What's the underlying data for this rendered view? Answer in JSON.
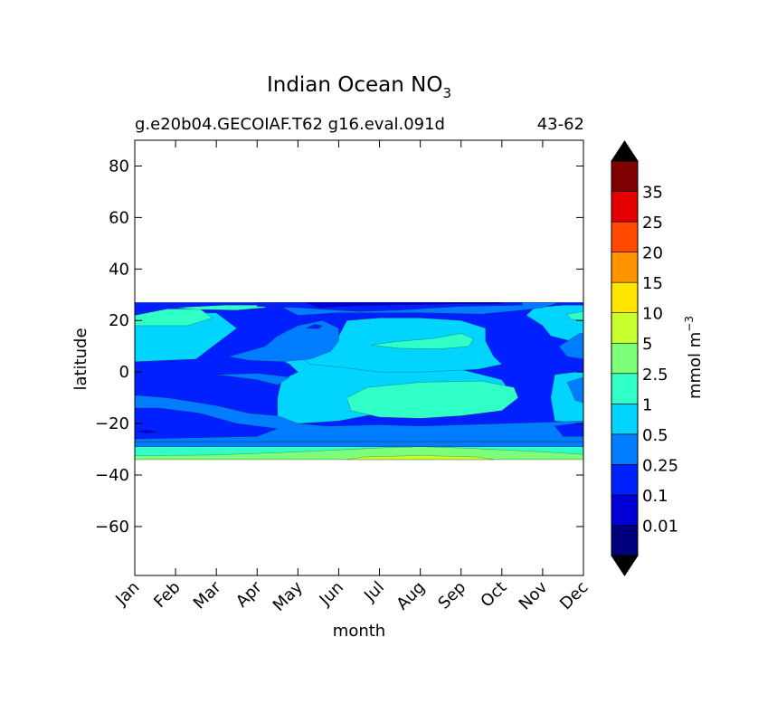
{
  "chart_data": {
    "type": "contour",
    "title_main": "Indian Ocean NO",
    "title_sub": "3",
    "subtitle_left": "g.e20b04.GECOIAF.T62 g16.eval.091d",
    "subtitle_right": "43-62",
    "xlabel": "month",
    "ylabel": "latitude",
    "x_categories": [
      "Jan",
      "Feb",
      "Mar",
      "Apr",
      "May",
      "Jun",
      "Jul",
      "Aug",
      "Sep",
      "Oct",
      "Nov",
      "Dec"
    ],
    "y_ticks": [
      "80",
      "60",
      "40",
      "20",
      "0",
      "−20",
      "−40",
      "−60"
    ],
    "y_tick_values": [
      80,
      60,
      40,
      20,
      0,
      -20,
      -40,
      -60
    ],
    "ylim": [
      -79,
      90
    ],
    "data_extent_lat": [
      -34,
      27
    ],
    "colorbar": {
      "label": "mmol m",
      "label_exp": "−3",
      "ticks": [
        "0.01",
        "0.1",
        "0.25",
        "0.5",
        "1",
        "2.5",
        "5",
        "10",
        "15",
        "20",
        "25",
        "35"
      ],
      "colors": [
        "#00007f",
        "#0000d6",
        "#0020ff",
        "#007cff",
        "#00d4ff",
        "#30ffc7",
        "#7dff7a",
        "#c8ff2f",
        "#ffe500",
        "#ff9400",
        "#ff4a00",
        "#e40000",
        "#7f0000"
      ],
      "extend": "both"
    },
    "regions": [
      {
        "level": 2,
        "points": [
          [
            1,
            27
          ],
          [
            12,
            27
          ],
          [
            12,
            -29
          ],
          [
            1,
            -29
          ]
        ]
      },
      {
        "level": 5,
        "points": [
          [
            1,
            -29
          ],
          [
            12,
            -29
          ],
          [
            12,
            -34
          ],
          [
            1,
            -34
          ]
        ]
      },
      {
        "level": 6,
        "points": [
          [
            1,
            -32.5
          ],
          [
            3,
            -32.2
          ],
          [
            5,
            -31
          ],
          [
            7,
            -29.5
          ],
          [
            8,
            -29
          ],
          [
            9,
            -29.5
          ],
          [
            11,
            -31
          ],
          [
            12,
            -32
          ],
          [
            12,
            -34
          ],
          [
            1,
            -34
          ]
        ]
      },
      {
        "level": 7,
        "points": [
          [
            6.2,
            -34
          ],
          [
            6.6,
            -33
          ],
          [
            8,
            -32.4
          ],
          [
            9.4,
            -33
          ],
          [
            9.8,
            -34
          ]
        ]
      },
      {
        "level": 3,
        "points": [
          [
            1,
            -27
          ],
          [
            12,
            -27
          ],
          [
            12,
            -29
          ],
          [
            1,
            -29
          ]
        ]
      },
      {
        "level": 4,
        "points": [
          [
            1,
            -24
          ],
          [
            3,
            -24
          ],
          [
            5,
            -25.5
          ],
          [
            7,
            -25
          ],
          [
            9,
            -24.5
          ],
          [
            11,
            -25
          ],
          [
            12,
            -25.5
          ],
          [
            12,
            -27
          ],
          [
            1,
            -27
          ]
        ]
      },
      {
        "level": 4,
        "points": [
          [
            1,
            21
          ],
          [
            2.2,
            23
          ],
          [
            3,
            23
          ],
          [
            3.5,
            17
          ],
          [
            3,
            11
          ],
          [
            2.5,
            5
          ],
          [
            1,
            4
          ]
        ]
      },
      {
        "level": 4,
        "points": [
          [
            4.4,
            6
          ],
          [
            5,
            5.5
          ],
          [
            6,
            2
          ],
          [
            7,
            2
          ],
          [
            8,
            2
          ],
          [
            9,
            1
          ],
          [
            9.5,
            -1
          ],
          [
            10,
            -3
          ],
          [
            10.3,
            -10
          ],
          [
            10,
            -15
          ],
          [
            8.5,
            -15
          ],
          [
            7,
            -16
          ],
          [
            6,
            -19
          ],
          [
            5,
            -20
          ],
          [
            4.5,
            -18
          ],
          [
            4.5,
            -10
          ],
          [
            4.6,
            -3
          ],
          [
            5,
            0
          ],
          [
            4.8,
            3
          ]
        ]
      },
      {
        "level": 4,
        "points": [
          [
            6.2,
            20
          ],
          [
            7,
            21
          ],
          [
            8,
            21
          ],
          [
            9,
            20
          ],
          [
            9.6,
            17
          ],
          [
            9.6,
            12
          ],
          [
            9.8,
            6
          ],
          [
            10,
            3
          ],
          [
            9.4,
            1
          ],
          [
            8,
            0
          ],
          [
            7,
            0
          ],
          [
            6,
            2
          ],
          [
            5.3,
            3
          ],
          [
            5,
            6
          ],
          [
            5.5,
            10
          ],
          [
            6,
            14
          ]
        ]
      },
      {
        "level": 4,
        "points": [
          [
            10.8,
            25
          ],
          [
            11.5,
            26
          ],
          [
            12,
            26
          ],
          [
            12,
            13
          ],
          [
            11.7,
            12
          ],
          [
            11.2,
            14
          ],
          [
            11,
            18
          ],
          [
            10.6,
            22
          ]
        ]
      },
      {
        "level": 4,
        "points": [
          [
            11.3,
            -1
          ],
          [
            11.8,
            0
          ],
          [
            12,
            0
          ],
          [
            12,
            -20
          ],
          [
            11.3,
            -19
          ],
          [
            11.2,
            -10
          ]
        ]
      },
      {
        "level": 5,
        "points": [
          [
            1,
            22
          ],
          [
            1.8,
            24.5
          ],
          [
            2.6,
            24.5
          ],
          [
            2.9,
            21
          ],
          [
            2.3,
            18
          ],
          [
            1,
            18
          ]
        ]
      },
      {
        "level": 5,
        "points": [
          [
            2,
            25
          ],
          [
            3.2,
            26
          ],
          [
            4.2,
            26
          ],
          [
            4.2,
            25
          ],
          [
            3.5,
            24
          ],
          [
            2.5,
            24.3
          ]
        ]
      },
      {
        "level": 5,
        "points": [
          [
            6.8,
            10.5
          ],
          [
            7.4,
            11.8
          ],
          [
            8.3,
            13
          ],
          [
            9,
            15
          ],
          [
            9.3,
            13
          ],
          [
            9.2,
            10
          ],
          [
            8.5,
            9
          ],
          [
            7.5,
            9.2
          ]
        ]
      },
      {
        "level": 5,
        "points": [
          [
            6.2,
            -10
          ],
          [
            6.7,
            -6
          ],
          [
            8,
            -4
          ],
          [
            9.5,
            -3.5
          ],
          [
            10.3,
            -6
          ],
          [
            10.4,
            -10
          ],
          [
            10,
            -15
          ],
          [
            9,
            -17
          ],
          [
            8,
            -18
          ],
          [
            7,
            -17.5
          ],
          [
            6.3,
            -15
          ]
        ]
      },
      {
        "level": 5,
        "points": [
          [
            11.6,
            22.5
          ],
          [
            12,
            23.5
          ],
          [
            12,
            20
          ],
          [
            11.7,
            20.5
          ]
        ]
      },
      {
        "level": 3,
        "points": [
          [
            1,
            -9
          ],
          [
            1.8,
            -10
          ],
          [
            3,
            -13
          ],
          [
            3.8,
            -16
          ],
          [
            4.5,
            -17
          ],
          [
            5,
            -20
          ],
          [
            5.7,
            -21
          ],
          [
            7,
            -20.5
          ],
          [
            8,
            -21
          ],
          [
            9,
            -20.5
          ],
          [
            10,
            -20
          ],
          [
            11,
            -19.5
          ],
          [
            12,
            -19
          ],
          [
            12,
            -27
          ],
          [
            1,
            -27
          ]
        ]
      },
      {
        "level": 3,
        "points": [
          [
            3.3,
            6
          ],
          [
            4.2,
            10
          ],
          [
            4.5,
            14
          ],
          [
            5,
            18
          ],
          [
            5.6,
            20
          ],
          [
            6,
            17
          ],
          [
            6,
            12
          ],
          [
            5.8,
            8
          ],
          [
            5.3,
            5
          ],
          [
            4.6,
            4
          ],
          [
            3.8,
            4.5
          ]
        ]
      },
      {
        "level": 3,
        "points": [
          [
            5,
            22
          ],
          [
            6,
            23
          ],
          [
            8,
            23
          ],
          [
            9.5,
            22.5
          ],
          [
            10.5,
            24
          ],
          [
            11,
            25
          ],
          [
            11.4,
            27
          ],
          [
            4.4,
            27
          ]
        ]
      },
      {
        "level": 3,
        "points": [
          [
            3,
            -1
          ],
          [
            4,
            -3
          ],
          [
            4.5,
            -5
          ],
          [
            4.8,
            -2
          ],
          [
            4,
            -0.5
          ]
        ]
      },
      {
        "level": 3,
        "points": [
          [
            11.4,
            10
          ],
          [
            11.9,
            15
          ],
          [
            12,
            15
          ],
          [
            12,
            5
          ],
          [
            11.6,
            6
          ]
        ]
      },
      {
        "level": 3,
        "points": [
          [
            11.6,
            -4
          ],
          [
            12,
            -2
          ],
          [
            12,
            -12
          ],
          [
            11.8,
            -11
          ]
        ]
      },
      {
        "level": 2,
        "points": [
          [
            1,
            -14
          ],
          [
            1.6,
            -14
          ],
          [
            2.6,
            -16
          ],
          [
            3.5,
            -20
          ],
          [
            4.5,
            -22
          ],
          [
            4,
            -25
          ],
          [
            1,
            -26
          ]
        ]
      },
      {
        "level": 2,
        "points": [
          [
            4,
            25.5
          ],
          [
            5,
            25
          ],
          [
            6.5,
            23.5
          ],
          [
            7.5,
            24
          ],
          [
            9,
            25.5
          ],
          [
            10.5,
            26
          ],
          [
            10.5,
            27
          ],
          [
            4,
            27
          ]
        ]
      },
      {
        "level": 2,
        "points": [
          [
            5.2,
            17
          ],
          [
            5.4,
            18.5
          ],
          [
            5.6,
            18
          ],
          [
            5.5,
            16.8
          ]
        ]
      },
      {
        "level": 2,
        "points": [
          [
            11.3,
            -21
          ],
          [
            11.8,
            -20
          ],
          [
            12,
            -20
          ],
          [
            12,
            -25
          ],
          [
            11.5,
            -25
          ]
        ]
      },
      {
        "level": 1,
        "points": [
          [
            5.5,
            25
          ],
          [
            6.5,
            25.8
          ],
          [
            8,
            26.2
          ],
          [
            9,
            26.5
          ],
          [
            10,
            26.5
          ],
          [
            10,
            27
          ],
          [
            5.2,
            27
          ]
        ]
      },
      {
        "level": 1,
        "points": [
          [
            1.05,
            -23
          ],
          [
            1.3,
            -22.5
          ],
          [
            1.55,
            -23.2
          ],
          [
            1.3,
            -23.8
          ]
        ]
      }
    ]
  }
}
